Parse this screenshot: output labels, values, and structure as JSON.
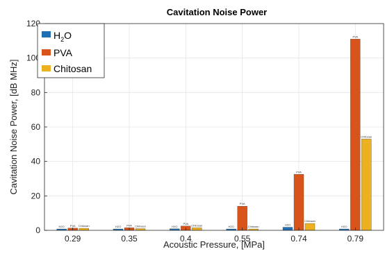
{
  "chart_data": {
    "type": "bar",
    "title": "Cavitation Noise Power",
    "xlabel": "Acoustic Pressure, [MPa]",
    "ylabel": "Cavitation Noise Power, [dB MHz]",
    "categories": [
      "0.29",
      "0.35",
      "0.4",
      "0.55",
      "0.74",
      "0.79"
    ],
    "ylim": [
      0,
      120
    ],
    "yticks": [
      0,
      20,
      40,
      60,
      80,
      100,
      120
    ],
    "grid": true,
    "legend_position": "top-left",
    "series": [
      {
        "name": "H2O",
        "legend_main": "H",
        "legend_sub": "2",
        "legend_tail": "O",
        "bar_label": "H2O",
        "color": "#1f6fb5",
        "values": [
          0.8,
          0.8,
          0.9,
          0.8,
          1.8,
          0.8
        ]
      },
      {
        "name": "PVA",
        "bar_label": "PVA",
        "color": "#d9541a",
        "values": [
          1.3,
          1.5,
          2.5,
          14,
          32.5,
          111
        ]
      },
      {
        "name": "Chitosan",
        "bar_label": "Chitosan",
        "color": "#edb120",
        "values": [
          1.2,
          1.0,
          1.5,
          0.8,
          4.0,
          53
        ]
      }
    ]
  }
}
